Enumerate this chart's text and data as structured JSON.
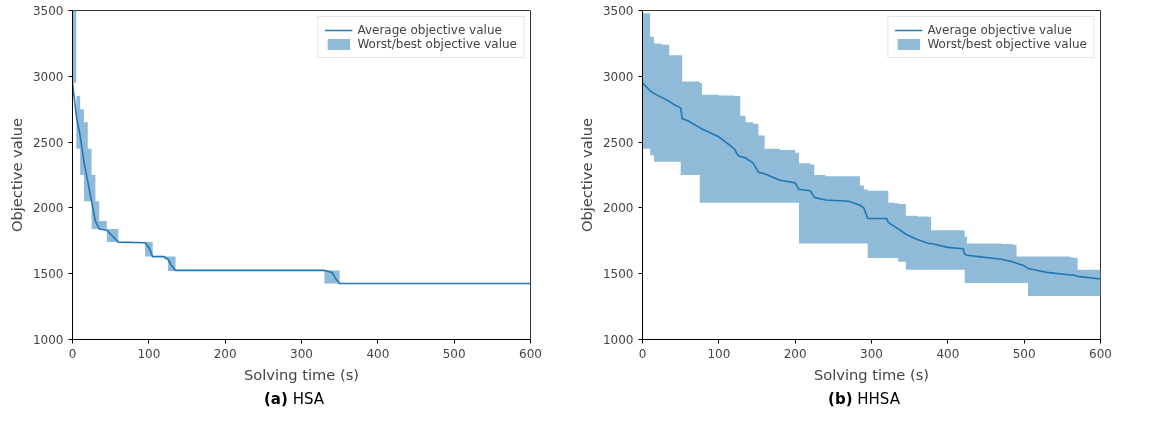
{
  "chart_data": [
    {
      "type": "line",
      "title": "(a) HSA",
      "xlabel": "Solving time (s)",
      "ylabel": "Objective value",
      "xlim": [
        0,
        600
      ],
      "ylim": [
        1000,
        3500
      ],
      "xticks": [
        0,
        100,
        200,
        300,
        400,
        500,
        600
      ],
      "yticks": [
        1000,
        1500,
        2000,
        2500,
        3000,
        3500
      ],
      "grid": false,
      "legend": "top right",
      "x": [
        0,
        5,
        10,
        15,
        20,
        25,
        30,
        35,
        45,
        50,
        60,
        95,
        100,
        105,
        120,
        125,
        130,
        135,
        330,
        340,
        345,
        350,
        600
      ],
      "series": [
        {
          "name": "Average objective value",
          "color": "#1f77b4",
          "values": [
            2950,
            2700,
            2550,
            2350,
            2200,
            2050,
            1900,
            1840,
            1830,
            1800,
            1740,
            1735,
            1700,
            1630,
            1630,
            1610,
            1560,
            1525,
            1525,
            1510,
            1460,
            1425,
            1425
          ],
          "upper": [
            3500,
            2850,
            2750,
            2650,
            2450,
            2250,
            2050,
            1900,
            1840,
            1840,
            1740,
            1740,
            1740,
            1630,
            1630,
            1630,
            1630,
            1525,
            1525,
            1525,
            1525,
            1425,
            1425
          ],
          "lower": [
            2950,
            2450,
            2250,
            2050,
            2050,
            1840,
            1840,
            1840,
            1740,
            1740,
            1740,
            1630,
            1630,
            1630,
            1610,
            1520,
            1520,
            1525,
            1425,
            1425,
            1425,
            1425,
            1425
          ]
        },
        {
          "type": "area",
          "name": "Worst/best objective value",
          "color": "#8fbbd9",
          "values": [
            null,
            null,
            null,
            null,
            null,
            null,
            null,
            null,
            null,
            null,
            null,
            null,
            null,
            null,
            null,
            null,
            null,
            null,
            null,
            null,
            null,
            null,
            null
          ]
        }
      ]
    },
    {
      "type": "line",
      "title": "(b) HHSA",
      "xlabel": "Solving time (s)",
      "ylabel": "Objective value",
      "xlim": [
        0,
        600
      ],
      "ylim": [
        1000,
        3500
      ],
      "xticks": [
        0,
        100,
        200,
        300,
        400,
        500,
        600
      ],
      "yticks": [
        1000,
        1500,
        2000,
        2500,
        3000,
        3500
      ],
      "grid": false,
      "legend": "top right",
      "x": [
        0,
        10,
        15,
        25,
        35,
        40,
        50,
        52,
        60,
        75,
        78,
        100,
        120,
        125,
        128,
        135,
        145,
        152,
        160,
        180,
        200,
        205,
        220,
        225,
        240,
        270,
        285,
        290,
        295,
        320,
        322,
        330,
        335,
        345,
        360,
        375,
        378,
        400,
        420,
        422,
        425,
        440,
        470,
        485,
        490,
        500,
        505,
        530,
        560,
        565,
        570,
        600
      ],
      "series": [
        {
          "name": "Average objective value",
          "color": "#1f77b4",
          "values": [
            2950,
            2890,
            2870,
            2840,
            2810,
            2790,
            2760,
            2680,
            2660,
            2610,
            2600,
            2540,
            2450,
            2400,
            2390,
            2380,
            2340,
            2270,
            2260,
            2210,
            2190,
            2140,
            2130,
            2080,
            2060,
            2050,
            2020,
            2000,
            1920,
            1920,
            1890,
            1860,
            1840,
            1800,
            1760,
            1730,
            1730,
            1700,
            1690,
            1650,
            1640,
            1630,
            1610,
            1590,
            1580,
            1560,
            1540,
            1510,
            1490,
            1490,
            1480,
            1460
          ],
          "upper": [
            3480,
            3300,
            3250,
            3240,
            3160,
            3160,
            3160,
            2960,
            2960,
            2950,
            2860,
            2855,
            2850,
            2850,
            2700,
            2650,
            2640,
            2550,
            2450,
            2440,
            2420,
            2340,
            2330,
            2250,
            2240,
            2240,
            2170,
            2140,
            2130,
            2130,
            2040,
            2035,
            2030,
            1940,
            1935,
            1930,
            1830,
            1830,
            1830,
            1780,
            1730,
            1730,
            1725,
            1720,
            1630,
            1630,
            1630,
            1630,
            1625,
            1620,
            1530,
            1520
          ],
          "lower": [
            2450,
            2400,
            2350,
            2350,
            2350,
            2350,
            2250,
            2250,
            2250,
            2040,
            2040,
            2040,
            2040,
            2040,
            2040,
            2040,
            2040,
            2040,
            2040,
            2040,
            2040,
            1730,
            1730,
            1730,
            1730,
            1730,
            1730,
            1730,
            1620,
            1620,
            1620,
            1620,
            1590,
            1530,
            1530,
            1530,
            1530,
            1530,
            1530,
            1430,
            1430,
            1430,
            1430,
            1430,
            1430,
            1430,
            1330,
            1330,
            1330,
            1330,
            1330,
            1330
          ]
        },
        {
          "type": "area",
          "name": "Worst/best objective value",
          "color": "#8fbbd9",
          "values": [
            null,
            null,
            null,
            null,
            null,
            null,
            null,
            null,
            null,
            null,
            null,
            null,
            null,
            null,
            null,
            null,
            null,
            null,
            null,
            null,
            null,
            null,
            null,
            null,
            null,
            null,
            null,
            null,
            null,
            null,
            null,
            null,
            null,
            null,
            null,
            null,
            null,
            null,
            null,
            null,
            null,
            null,
            null,
            null,
            null,
            null,
            null,
            null,
            null,
            null,
            null,
            null
          ]
        }
      ]
    }
  ]
}
